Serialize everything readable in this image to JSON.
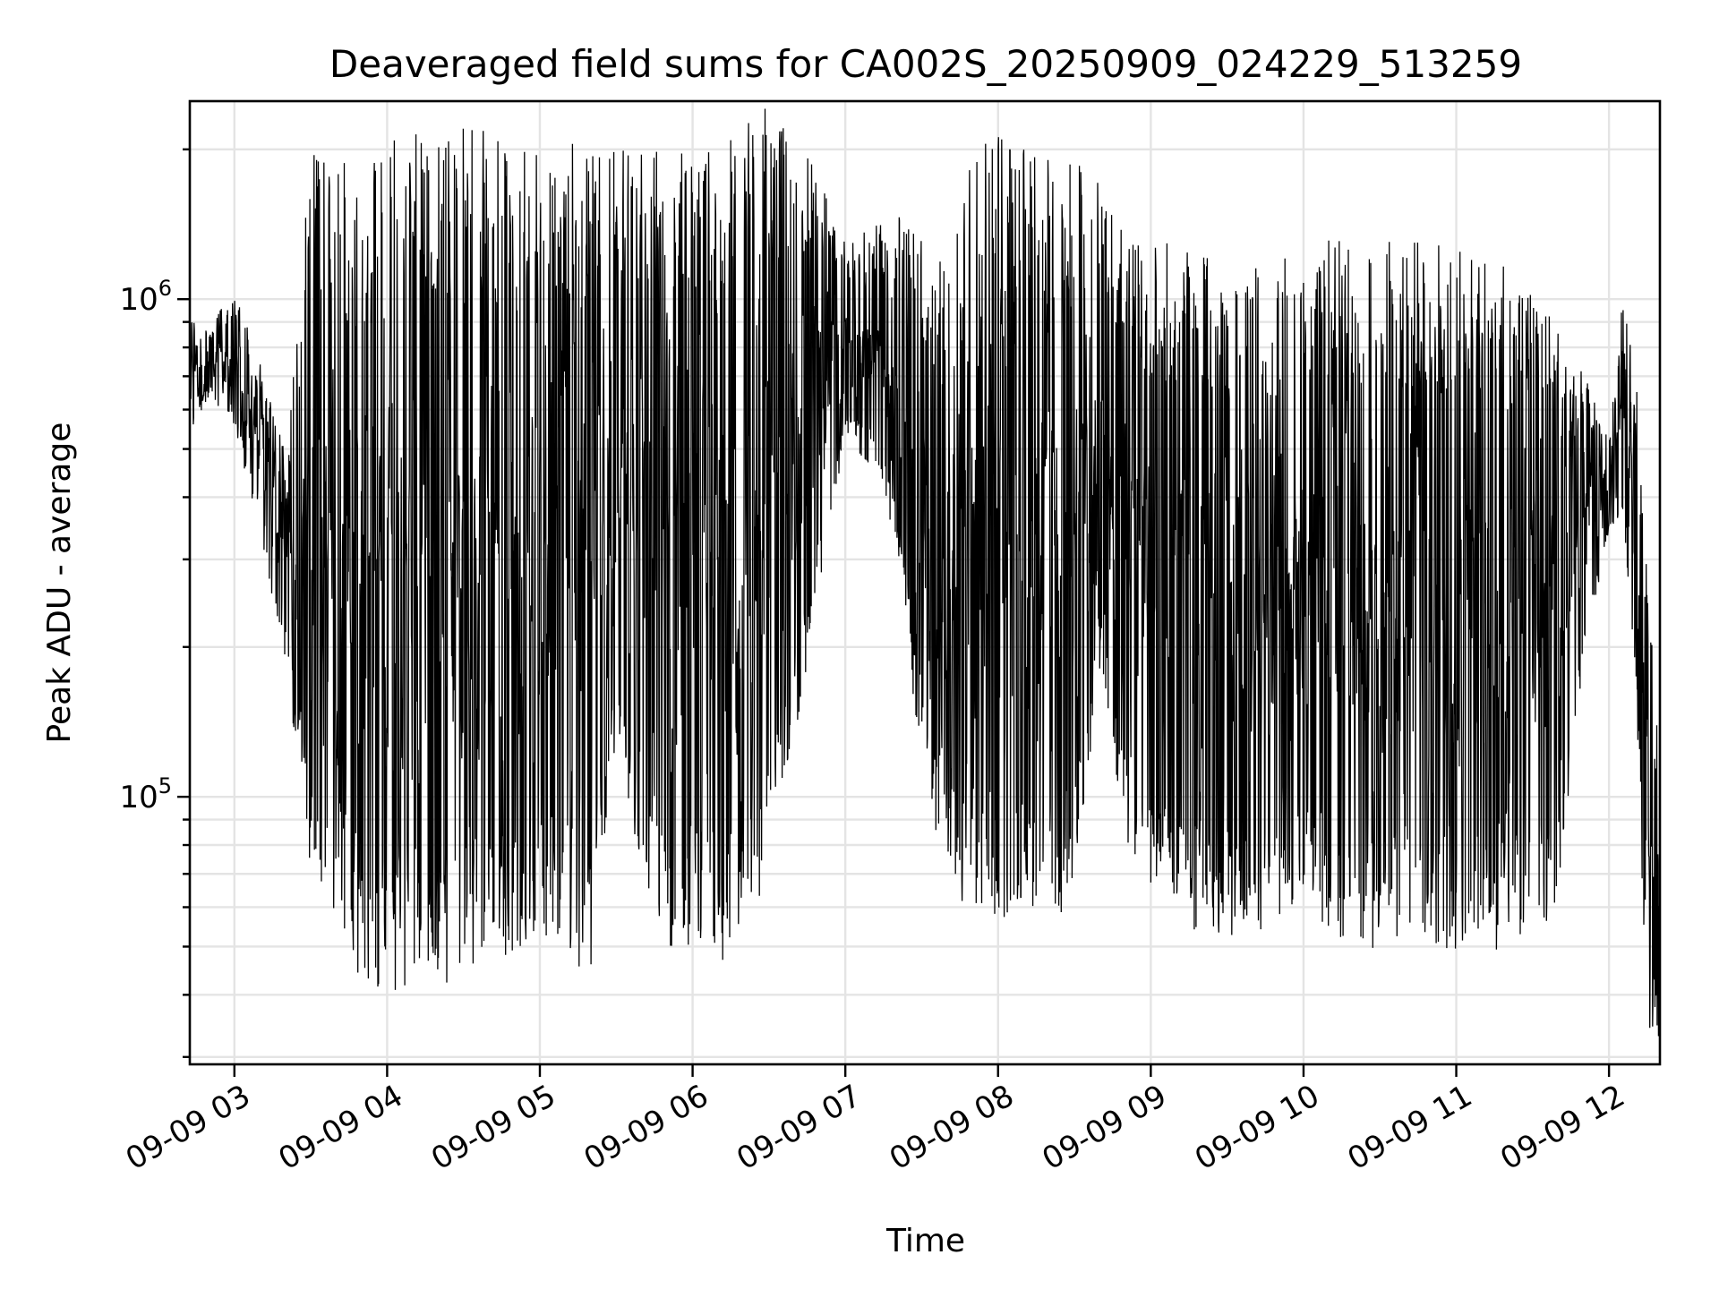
{
  "chart_data": {
    "type": "line",
    "title": "Deaveraged field sums for CA002S_20250909_024229_513259",
    "xlabel": "Time",
    "ylabel": "Peak ADU - average",
    "yscale": "log",
    "ylim": [
      29000,
      2500000
    ],
    "xlim": [
      "2025-09-09 02:42:29",
      "2025-09-09 12:20:00"
    ],
    "grid": true,
    "legend": "none",
    "line_color": "#000000",
    "x_ticks": [
      {
        "value": "2025-09-09 03:00",
        "label": "09-09 03"
      },
      {
        "value": "2025-09-09 04:00",
        "label": "09-09 04"
      },
      {
        "value": "2025-09-09 05:00",
        "label": "09-09 05"
      },
      {
        "value": "2025-09-09 06:00",
        "label": "09-09 06"
      },
      {
        "value": "2025-09-09 07:00",
        "label": "09-09 07"
      },
      {
        "value": "2025-09-09 08:00",
        "label": "09-09 08"
      },
      {
        "value": "2025-09-09 09:00",
        "label": "09-09 09"
      },
      {
        "value": "2025-09-09 10:00",
        "label": "09-09 10"
      },
      {
        "value": "2025-09-09 11:00",
        "label": "09-09 11"
      },
      {
        "value": "2025-09-09 12:00",
        "label": "09-09 12"
      }
    ],
    "y_ticks": [
      {
        "value": 100000,
        "base": "10",
        "exp": "5"
      },
      {
        "value": 1000000,
        "base": "10",
        "exp": "6"
      }
    ],
    "envelope": {
      "x": [
        "2025-09-09 02:42",
        "2025-09-09 02:50",
        "2025-09-09 03:00",
        "2025-09-09 03:10",
        "2025-09-09 03:20",
        "2025-09-09 03:30",
        "2025-09-09 03:40",
        "2025-09-09 03:50",
        "2025-09-09 04:00",
        "2025-09-09 04:10",
        "2025-09-09 04:20",
        "2025-09-09 04:30",
        "2025-09-09 04:40",
        "2025-09-09 04:50",
        "2025-09-09 05:00",
        "2025-09-09 05:10",
        "2025-09-09 05:20",
        "2025-09-09 05:30",
        "2025-09-09 05:40",
        "2025-09-09 05:50",
        "2025-09-09 06:00",
        "2025-09-09 06:10",
        "2025-09-09 06:20",
        "2025-09-09 06:30",
        "2025-09-09 06:40",
        "2025-09-09 06:50",
        "2025-09-09 07:00",
        "2025-09-09 07:10",
        "2025-09-09 07:20",
        "2025-09-09 07:30",
        "2025-09-09 07:40",
        "2025-09-09 07:50",
        "2025-09-09 08:00",
        "2025-09-09 08:10",
        "2025-09-09 08:20",
        "2025-09-09 08:30",
        "2025-09-09 08:40",
        "2025-09-09 08:50",
        "2025-09-09 09:00",
        "2025-09-09 09:10",
        "2025-09-09 09:20",
        "2025-09-09 09:30",
        "2025-09-09 09:40",
        "2025-09-09 09:50",
        "2025-09-09 10:00",
        "2025-09-09 10:10",
        "2025-09-09 10:20",
        "2025-09-09 10:30",
        "2025-09-09 10:40",
        "2025-09-09 10:50",
        "2025-09-09 11:00",
        "2025-09-09 11:10",
        "2025-09-09 11:20",
        "2025-09-09 11:30",
        "2025-09-09 11:40",
        "2025-09-09 11:50",
        "2025-09-09 12:00",
        "2025-09-09 12:05",
        "2025-09-09 12:10",
        "2025-09-09 12:15",
        "2025-09-09 12:20"
      ],
      "upper": [
        900000,
        850000,
        1000000,
        700000,
        450000,
        1500000,
        1500000,
        1400000,
        1500000,
        1600000,
        1500000,
        1600000,
        1600000,
        1500000,
        1500000,
        1500000,
        1500000,
        1600000,
        1500000,
        1500000,
        1400000,
        1500000,
        1700000,
        1800000,
        1700000,
        1500000,
        1200000,
        1300000,
        1300000,
        1100000,
        900000,
        1600000,
        1600000,
        1500000,
        1500000,
        1500000,
        1400000,
        1100000,
        1000000,
        1000000,
        950000,
        900000,
        900000,
        1000000,
        900000,
        1000000,
        1000000,
        1000000,
        1000000,
        1000000,
        950000,
        950000,
        900000,
        850000,
        700000,
        650000,
        500000,
        900000,
        700000,
        250000,
        100000
      ],
      "lower": [
        550000,
        650000,
        580000,
        350000,
        200000,
        90000,
        70000,
        55000,
        52000,
        55000,
        55000,
        55000,
        60000,
        60000,
        70000,
        60000,
        55000,
        150000,
        90000,
        65000,
        60000,
        60000,
        65000,
        90000,
        150000,
        300000,
        550000,
        500000,
        350000,
        130000,
        80000,
        75000,
        70000,
        80000,
        70000,
        75000,
        200000,
        100000,
        80000,
        70000,
        65000,
        65000,
        65000,
        70000,
        75000,
        65000,
        60000,
        60000,
        65000,
        60000,
        60000,
        60000,
        60000,
        65000,
        70000,
        200000,
        350000,
        400000,
        200000,
        40000,
        35000
      ]
    }
  }
}
